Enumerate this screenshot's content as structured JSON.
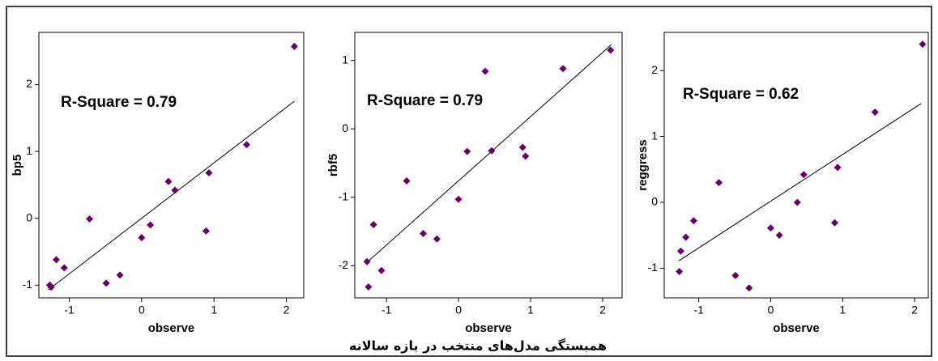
{
  "caption": "همبستگی مدل‌های منتخب در بازه سالانه",
  "chart_data": [
    {
      "type": "scatter",
      "annotation": "R-Square = 0.79",
      "x_label": "observe",
      "y_label": "bp5",
      "color": "#660066",
      "x": [
        -1.27,
        -1.25,
        -1.18,
        -1.07,
        -0.72,
        -0.49,
        -0.3,
        0.0,
        0.12,
        0.37,
        0.46,
        0.89,
        0.93,
        1.45,
        2.11
      ],
      "values": [
        -1.0,
        -1.03,
        -0.62,
        -0.74,
        -0.01,
        -0.97,
        -0.85,
        -0.29,
        -0.1,
        0.55,
        0.42,
        -0.19,
        0.68,
        1.1,
        2.57
      ],
      "fit_line": {
        "x": [
          -1.29,
          2.11
        ],
        "y": [
          -1.07,
          1.75
        ]
      },
      "xlim": [
        -1.42,
        2.24
      ],
      "ylim": [
        -1.19,
        2.78
      ],
      "xticks": [
        -1,
        0,
        1,
        2
      ],
      "yticks": [
        -1,
        0,
        1,
        2
      ]
    },
    {
      "type": "scatter",
      "annotation": "R-Square = 0.79",
      "x_label": "observe",
      "y_label": "rbf5",
      "color": "#660066",
      "x": [
        -1.27,
        -1.25,
        -1.18,
        -1.07,
        -0.72,
        -0.49,
        -0.3,
        0.0,
        0.12,
        0.37,
        0.46,
        0.89,
        0.93,
        1.45,
        2.11
      ],
      "values": [
        -1.94,
        -2.31,
        -1.4,
        -2.07,
        -0.76,
        -1.53,
        -1.61,
        -1.03,
        -0.33,
        0.84,
        -0.32,
        -0.27,
        -0.4,
        0.88,
        1.15
      ],
      "fit_line": {
        "x": [
          -1.28,
          2.12
        ],
        "y": [
          -1.96,
          1.23
        ]
      },
      "xlim": [
        -1.44,
        2.27
      ],
      "ylim": [
        -2.47,
        1.41
      ],
      "xticks": [
        -1,
        0,
        1,
        2
      ],
      "yticks": [
        -2,
        -1,
        0,
        1
      ]
    },
    {
      "type": "scatter",
      "annotation": "R-Square = 0.62",
      "x_label": "observe",
      "y_label": "reggress",
      "color": "#660066",
      "x": [
        -1.27,
        -1.25,
        -1.18,
        -1.07,
        -0.72,
        -0.49,
        -0.3,
        0.0,
        0.12,
        0.37,
        0.46,
        0.89,
        0.93,
        1.45,
        2.11
      ],
      "values": [
        -1.05,
        -0.74,
        -0.53,
        -0.28,
        0.3,
        -1.11,
        -1.3,
        -0.39,
        -0.5,
        0.0,
        0.42,
        -0.31,
        0.53,
        1.37,
        2.4
      ],
      "fit_line": {
        "x": [
          -1.28,
          2.09
        ],
        "y": [
          -0.89,
          1.5
        ]
      },
      "xlim": [
        -1.48,
        2.19
      ],
      "ylim": [
        -1.45,
        2.58
      ],
      "xticks": [
        -1,
        0,
        1,
        2
      ],
      "yticks": [
        -1,
        0,
        1,
        2
      ]
    }
  ]
}
